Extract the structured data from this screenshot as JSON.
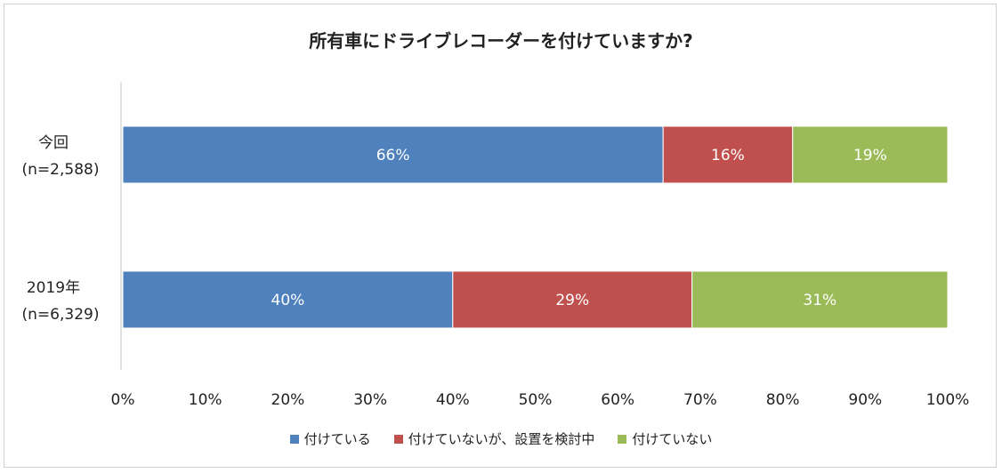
{
  "chart_data": {
    "type": "bar",
    "orientation": "horizontal",
    "stacked": true,
    "title": "所有車にドライブレコーダーを付けていますか?",
    "categories": [
      {
        "line1": "今回",
        "line2": "(n=2,588)"
      },
      {
        "line1": "2019年",
        "line2": "(n=6,329)"
      }
    ],
    "series": [
      {
        "name": "付けている",
        "color": "#4f81bd",
        "values": [
          65.5,
          40
        ],
        "labels": [
          "66%",
          "40%"
        ]
      },
      {
        "name": "付けていないが、設置を検討中",
        "color": "#c0504d",
        "values": [
          15.7,
          29
        ],
        "labels": [
          "16%",
          "29%"
        ]
      },
      {
        "name": "付けていない",
        "color": "#9bbb59",
        "values": [
          18.8,
          31
        ],
        "labels": [
          "19%",
          "31%"
        ]
      }
    ],
    "xlim": [
      0,
      100
    ],
    "xticks": [
      "0%",
      "10%",
      "20%",
      "30%",
      "40%",
      "50%",
      "60%",
      "70%",
      "80%",
      "90%",
      "100%"
    ],
    "grid": false,
    "legend_position": "bottom"
  }
}
